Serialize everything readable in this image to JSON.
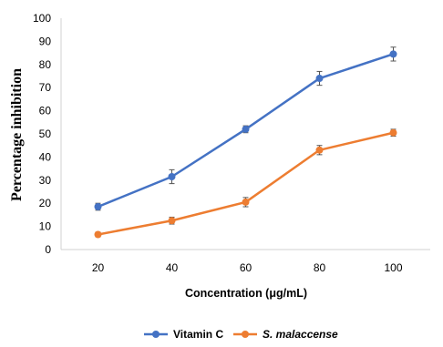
{
  "chart_data": {
    "type": "line",
    "x": [
      20,
      40,
      60,
      80,
      100
    ],
    "series": [
      {
        "name": "Vitamin C",
        "values": [
          18.5,
          31.5,
          52,
          74,
          84.5
        ],
        "errors": [
          1.5,
          3,
          1.5,
          3,
          3
        ],
        "color": "#4472C4"
      },
      {
        "name": "S. malaccense",
        "values": [
          6.5,
          12.5,
          20.5,
          43,
          50.5
        ],
        "errors": [
          1,
          1.5,
          2,
          2,
          1.5
        ],
        "color": "#ED7D31"
      }
    ],
    "ylim": [
      0,
      100
    ],
    "yticks": [
      0,
      10,
      20,
      30,
      40,
      50,
      60,
      70,
      80,
      90,
      100
    ],
    "xlabel": "Concentration (μg/mL)",
    "ylabel": "Percentage inhibition",
    "grid": false,
    "legend_position": "bottom"
  }
}
